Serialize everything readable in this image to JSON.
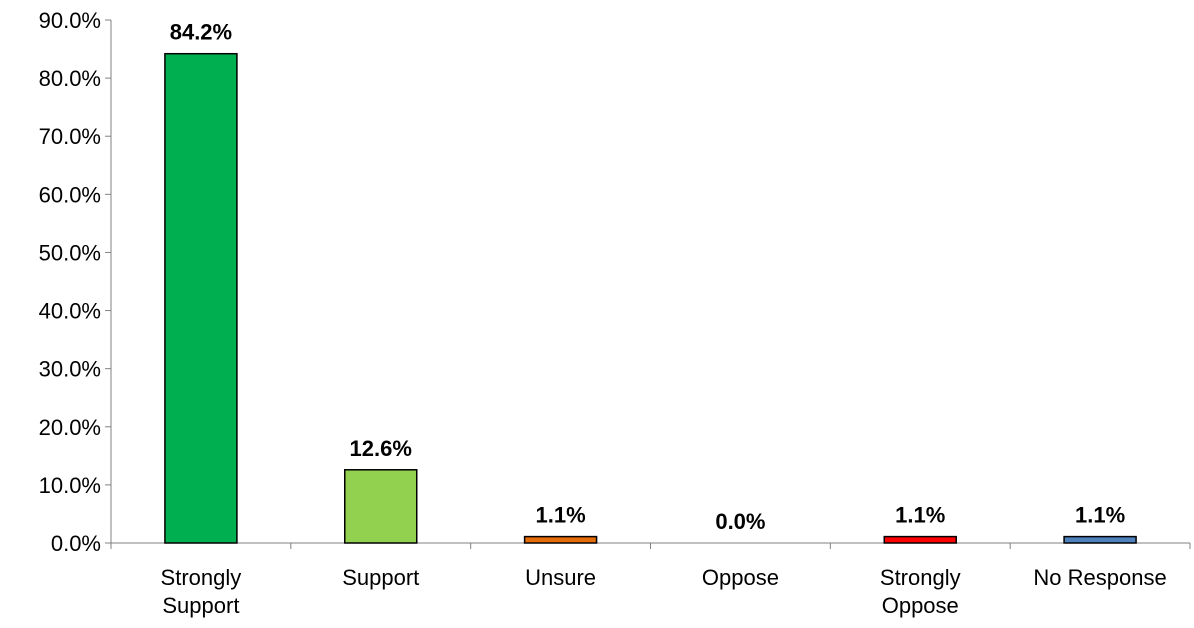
{
  "chart_data": {
    "type": "bar",
    "title": "",
    "xlabel": "",
    "ylabel": "",
    "categories": [
      [
        "Strongly",
        "Support"
      ],
      [
        "Support"
      ],
      [
        "Unsure"
      ],
      [
        "Oppose"
      ],
      [
        "Strongly",
        "Oppose"
      ],
      [
        "No Response"
      ]
    ],
    "values": [
      84.2,
      12.6,
      1.1,
      0.0,
      1.1,
      1.1
    ],
    "data_labels": [
      "84.2%",
      "12.6%",
      "1.1%",
      "0.0%",
      "1.1%",
      "1.1%"
    ],
    "colors": [
      "#00b050",
      "#92d050",
      "#e36c09",
      "#c55a11",
      "#ff0000",
      "#4f81bd"
    ],
    "ylim": [
      0,
      90
    ],
    "yticks": [
      0,
      10,
      20,
      30,
      40,
      50,
      60,
      70,
      80,
      90
    ],
    "ytick_labels": [
      "0.0%",
      "10.0%",
      "20.0%",
      "30.0%",
      "40.0%",
      "50.0%",
      "60.0%",
      "70.0%",
      "80.0%",
      "90.0%"
    ],
    "grid": false,
    "legend": false
  }
}
